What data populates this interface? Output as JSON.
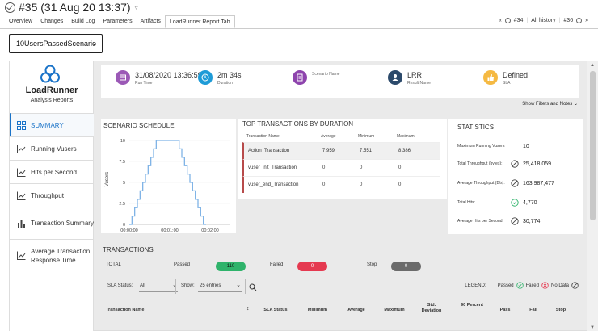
{
  "build": {
    "title": "#35 (31 Aug 20 13:37)",
    "tabs": [
      "Overview",
      "Changes",
      "Build Log",
      "Parameters",
      "Artifacts",
      "LoadRunner Report Tab"
    ],
    "prev": "#34",
    "history": "All history",
    "next": "#36"
  },
  "scenario_select": {
    "value": "10UsersPassedScenario"
  },
  "sidebar": {
    "brand": "LoadRunner",
    "subtitle": "Analysis Reports",
    "items": [
      {
        "label": "SUMMARY",
        "icon": "grid-icon"
      },
      {
        "label": "Running Vusers",
        "icon": "line-chart-icon"
      },
      {
        "label": "Hits per Second",
        "icon": "line-chart-icon"
      },
      {
        "label": "Throughput",
        "icon": "line-chart-icon"
      },
      {
        "label": "Transaction Summary",
        "icon": "bar-chart-icon"
      },
      {
        "label": "Average Transaction Response Time",
        "icon": "line-chart-icon"
      }
    ]
  },
  "summary": {
    "run_time": {
      "value": "31/08/2020 13:36:59",
      "label": "Run Time",
      "color": "#9b59b6"
    },
    "duration": {
      "value": "2m  34s",
      "label": "Duration",
      "color": "#1e9bd7"
    },
    "scenario": {
      "value": "",
      "label": "Scenario Name",
      "color": "#8e44ad"
    },
    "result": {
      "value": "LRR",
      "label": "Result Name",
      "color": "#2c4a6b"
    },
    "sla": {
      "value": "Defined",
      "label": "SLA",
      "color": "#f5b942"
    }
  },
  "show_filters": "Show Filters and Notes",
  "schedule": {
    "title": "SCENARIO SCHEDULE"
  },
  "chart_data": {
    "type": "line",
    "title": "SCENARIO SCHEDULE",
    "ylabel": "Vusers",
    "xlabel": "",
    "x_ticks": [
      "00:00:00",
      "00:01:00",
      "00:02:00"
    ],
    "y_ticks": [
      "0",
      "2.5",
      "5",
      "7.5",
      "10"
    ],
    "ylim": [
      0,
      10
    ],
    "xlim": [
      0,
      150
    ],
    "x": [
      0,
      4,
      4,
      8,
      8,
      12,
      12,
      16,
      16,
      20,
      20,
      24,
      24,
      28,
      28,
      32,
      32,
      36,
      36,
      40,
      40,
      74,
      74,
      78,
      78,
      82,
      82,
      86,
      86,
      90,
      90,
      94,
      94,
      98,
      98,
      102,
      102,
      106,
      106,
      110,
      110,
      114
    ],
    "y": [
      0,
      0,
      1,
      1,
      2,
      2,
      3,
      3,
      4,
      4,
      5,
      5,
      6,
      6,
      7,
      7,
      8,
      8,
      9,
      9,
      10,
      10,
      9,
      9,
      8,
      8,
      7,
      7,
      6,
      6,
      5,
      5,
      4,
      4,
      3,
      3,
      2,
      2,
      1,
      1,
      0,
      0
    ],
    "color": "#7fb3e6"
  },
  "top_transactions": {
    "title": "TOP TRANSACTIONS BY DURATION",
    "headers": [
      "Transaction Name",
      "Average",
      "Minimum",
      "Maximum"
    ],
    "rows": [
      {
        "name": "Action_Transaction",
        "avg": "7.959",
        "min": "7.551",
        "max": "8.386"
      },
      {
        "name": "vuser_init_Transaction",
        "avg": "0",
        "min": "0",
        "max": "0"
      },
      {
        "name": "vuser_end_Transaction",
        "avg": "0",
        "min": "0",
        "max": "0"
      }
    ]
  },
  "statistics": {
    "title": "STATISTICS",
    "rows": [
      {
        "label": "Maximum Running Vusers",
        "value": "10",
        "icon": ""
      },
      {
        "label": "Total Throughput (bytes):",
        "value": "25,418,059",
        "icon": "no-data"
      },
      {
        "label": "Average Throughput (B/s):",
        "value": "163,987,477",
        "icon": "no-data"
      },
      {
        "label": "Total Hits:",
        "value": "4,770",
        "icon": "passed"
      },
      {
        "label": "Average Hits per Second:",
        "value": "30,774",
        "icon": "no-data"
      }
    ]
  },
  "transactions": {
    "title": "TRANSACTIONS",
    "total_label": "TOTAL",
    "passed_label": "Passed",
    "passed_value": "110",
    "failed_label": "Failed",
    "failed_value": "0",
    "stop_label": "Stop",
    "stop_value": "0",
    "sla_status_label": "SLA Status:",
    "sla_status_value": "All",
    "show_label": "Show:",
    "show_value": "25 entries",
    "legend_label": "LEGEND:",
    "legend_passed": "Passed",
    "legend_failed": "Failed",
    "legend_nodata": "No Data",
    "columns": [
      "Transaction Name",
      "SLA Status",
      "Minimum",
      "Average",
      "Maximum",
      "Std. Deviation",
      "90 Percent",
      "Pass",
      "Fail",
      "Stop"
    ],
    "colors": {
      "passed": "#2fb36b",
      "failed": "#e53950",
      "stop": "#6b6b6b"
    }
  }
}
